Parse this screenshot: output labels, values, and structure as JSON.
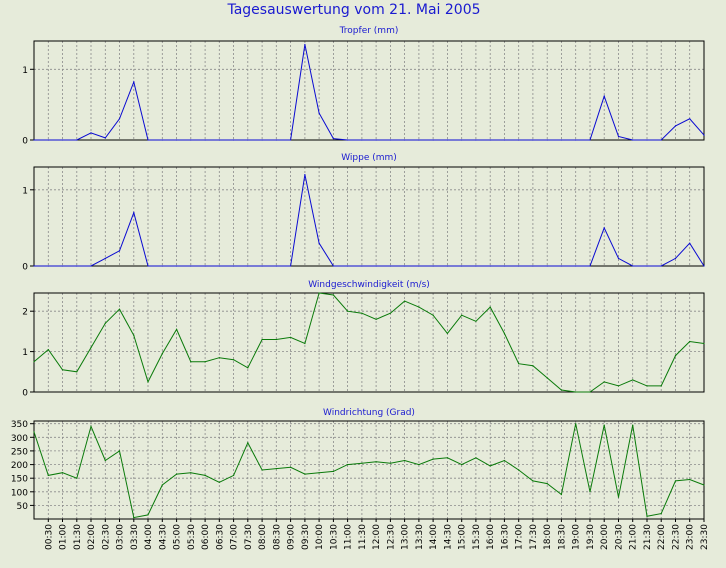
{
  "page": {
    "title": "Tagesauswertung vom 21. Mai 2005",
    "background": "#e6ebda",
    "title_color": "#1a1ad0",
    "grid_color": "#8a8a8a",
    "axis_color": "#000000"
  },
  "time_labels": [
    "00:30",
    "01:00",
    "01:30",
    "02:00",
    "02:30",
    "03:00",
    "03:30",
    "04:00",
    "04:30",
    "05:00",
    "05:30",
    "06:00",
    "06:30",
    "07:00",
    "07:30",
    "08:00",
    "08:30",
    "09:00",
    "09:30",
    "10:00",
    "10:30",
    "11:00",
    "11:30",
    "12:00",
    "12:30",
    "13:00",
    "13:30",
    "14:00",
    "14:30",
    "15:00",
    "15:30",
    "16:00",
    "16:30",
    "17:00",
    "17:30",
    "18:00",
    "18:30",
    "19:00",
    "19:30",
    "20:00",
    "20:30",
    "21:00",
    "21:30",
    "22:00",
    "22:30",
    "23:00",
    "23:30"
  ],
  "chart_data": [
    {
      "type": "line",
      "title": "Tropfer (mm)",
      "color": "#0a0ad2",
      "ylim": [
        0,
        1.4
      ],
      "yticks": [
        0,
        1
      ],
      "x": [
        "00:00",
        "00:30",
        "01:00",
        "01:30",
        "02:00",
        "02:30",
        "03:00",
        "03:30",
        "04:00",
        "04:30",
        "05:00",
        "05:30",
        "06:00",
        "06:30",
        "07:00",
        "07:30",
        "08:00",
        "08:30",
        "09:00",
        "09:30",
        "10:00",
        "10:30",
        "11:00",
        "11:30",
        "12:00",
        "12:30",
        "13:00",
        "13:30",
        "14:00",
        "14:30",
        "15:00",
        "15:30",
        "16:00",
        "16:30",
        "17:00",
        "17:30",
        "18:00",
        "18:30",
        "19:00",
        "19:30",
        "20:00",
        "20:30",
        "21:00",
        "21:30",
        "22:00",
        "22:30",
        "23:00",
        "23:30"
      ],
      "values": [
        0,
        0,
        0,
        0,
        0.1,
        0.03,
        0.3,
        0.82,
        0,
        0,
        0,
        0,
        0,
        0,
        0,
        0,
        0,
        0,
        0,
        1.35,
        0.38,
        0.02,
        0,
        0,
        0,
        0,
        0,
        0,
        0,
        0,
        0,
        0,
        0,
        0,
        0,
        0,
        0,
        0,
        0,
        0,
        0.62,
        0.05,
        0,
        0,
        0,
        0.2,
        0.3,
        0.07
      ]
    },
    {
      "type": "line",
      "title": "Wippe (mm)",
      "color": "#0a0ad2",
      "ylim": [
        0,
        1.3
      ],
      "yticks": [
        0,
        1
      ],
      "x": [
        "00:00",
        "00:30",
        "01:00",
        "01:30",
        "02:00",
        "02:30",
        "03:00",
        "03:30",
        "04:00",
        "04:30",
        "05:00",
        "05:30",
        "06:00",
        "06:30",
        "07:00",
        "07:30",
        "08:00",
        "08:30",
        "09:00",
        "09:30",
        "10:00",
        "10:30",
        "11:00",
        "11:30",
        "12:00",
        "12:30",
        "13:00",
        "13:30",
        "14:00",
        "14:30",
        "15:00",
        "15:30",
        "16:00",
        "16:30",
        "17:00",
        "17:30",
        "18:00",
        "18:30",
        "19:00",
        "19:30",
        "20:00",
        "20:30",
        "21:00",
        "21:30",
        "22:00",
        "22:30",
        "23:00",
        "23:30"
      ],
      "values": [
        0,
        0,
        0,
        0,
        0,
        0.1,
        0.2,
        0.7,
        0,
        0,
        0,
        0,
        0,
        0,
        0,
        0,
        0,
        0,
        0,
        1.2,
        0.3,
        0,
        0,
        0,
        0,
        0,
        0,
        0,
        0,
        0,
        0,
        0,
        0,
        0,
        0,
        0,
        0,
        0,
        0,
        0,
        0.5,
        0.1,
        0,
        0,
        0,
        0.1,
        0.3,
        0
      ]
    },
    {
      "type": "line",
      "title": "Windgeschwindigkeit (m/s)",
      "color": "#0a7a0a",
      "ylim": [
        0,
        2.45
      ],
      "yticks": [
        0,
        1,
        2
      ],
      "x": [
        "00:00",
        "00:30",
        "01:00",
        "01:30",
        "02:00",
        "02:30",
        "03:00",
        "03:30",
        "04:00",
        "04:30",
        "05:00",
        "05:30",
        "06:00",
        "06:30",
        "07:00",
        "07:30",
        "08:00",
        "08:30",
        "09:00",
        "09:30",
        "10:00",
        "10:30",
        "11:00",
        "11:30",
        "12:00",
        "12:30",
        "13:00",
        "13:30",
        "14:00",
        "14:30",
        "15:00",
        "15:30",
        "16:00",
        "16:30",
        "17:00",
        "17:30",
        "18:00",
        "18:30",
        "19:00",
        "19:30",
        "20:00",
        "20:30",
        "21:00",
        "21:30",
        "22:00",
        "22:30",
        "23:00",
        "23:30"
      ],
      "values": [
        0.75,
        1.05,
        0.55,
        0.5,
        1.1,
        1.7,
        2.05,
        1.4,
        0.25,
        0.95,
        1.55,
        0.75,
        0.75,
        0.85,
        0.8,
        0.6,
        1.3,
        1.3,
        1.35,
        1.2,
        2.45,
        2.4,
        2.0,
        1.95,
        1.8,
        1.95,
        2.25,
        2.1,
        1.9,
        1.45,
        1.9,
        1.75,
        2.1,
        1.45,
        0.7,
        0.65,
        0.35,
        0.05,
        0,
        0,
        0.25,
        0.15,
        0.3,
        0.15,
        0.15,
        0.9,
        1.25,
        1.2
      ]
    },
    {
      "type": "line",
      "title": "Windrichtung (Grad)",
      "color": "#0a7a0a",
      "ylim": [
        0,
        360
      ],
      "yticks": [
        50,
        100,
        150,
        200,
        250,
        300,
        350
      ],
      "x": [
        "00:00",
        "00:30",
        "01:00",
        "01:30",
        "02:00",
        "02:30",
        "03:00",
        "03:30",
        "04:00",
        "04:30",
        "05:00",
        "05:30",
        "06:00",
        "06:30",
        "07:00",
        "07:30",
        "08:00",
        "08:30",
        "09:00",
        "09:30",
        "10:00",
        "10:30",
        "11:00",
        "11:30",
        "12:00",
        "12:30",
        "13:00",
        "13:30",
        "14:00",
        "14:30",
        "15:00",
        "15:30",
        "16:00",
        "16:30",
        "17:00",
        "17:30",
        "18:00",
        "18:30",
        "19:00",
        "19:30",
        "20:00",
        "20:30",
        "21:00",
        "21:30",
        "22:00",
        "22:30",
        "23:00",
        "23:30"
      ],
      "values": [
        320,
        160,
        170,
        150,
        340,
        215,
        250,
        5,
        15,
        125,
        165,
        170,
        160,
        135,
        160,
        280,
        180,
        185,
        190,
        165,
        170,
        175,
        200,
        205,
        210,
        205,
        215,
        200,
        220,
        225,
        200,
        225,
        195,
        215,
        180,
        140,
        130,
        90,
        350,
        100,
        345,
        80,
        345,
        10,
        20,
        140,
        145,
        125
      ]
    }
  ]
}
